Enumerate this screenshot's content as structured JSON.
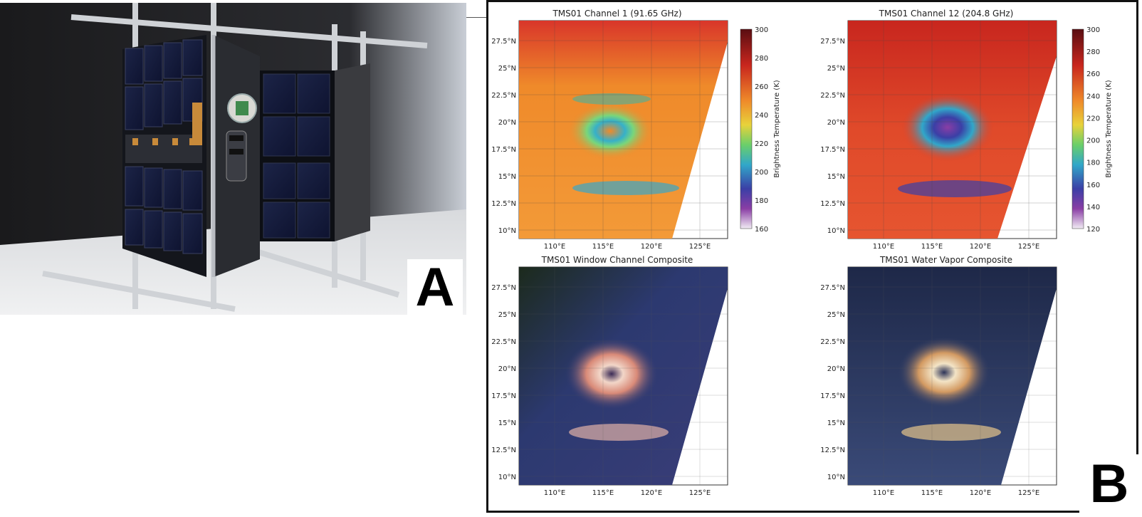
{
  "labels": {
    "a": "A",
    "b": "B"
  },
  "panels": [
    {
      "title": "TMS01 Channel 1 (91.65 GHz)",
      "colorbar": {
        "label": "Brightness Temperature (K)",
        "ticks": [
          "300",
          "280",
          "260",
          "240",
          "220",
          "200",
          "180",
          "160"
        ]
      }
    },
    {
      "title": "TMS01 Channel 12 (204.8 GHz)",
      "colorbar": {
        "label": "Brightness Temperature (K)",
        "ticks": [
          "300",
          "280",
          "260",
          "240",
          "220",
          "200",
          "180",
          "160",
          "140",
          "120"
        ]
      }
    },
    {
      "title": "TMS01 Window Channel Composite"
    },
    {
      "title": "TMS01 Water Vapor Composite"
    }
  ],
  "lat_ticks": [
    "27.5°N",
    "25°N",
    "22.5°N",
    "20°N",
    "17.5°N",
    "15°N",
    "12.5°N",
    "10°N"
  ],
  "lon_ticks": [
    "110°E",
    "115°E",
    "120°E",
    "125°E"
  ]
}
